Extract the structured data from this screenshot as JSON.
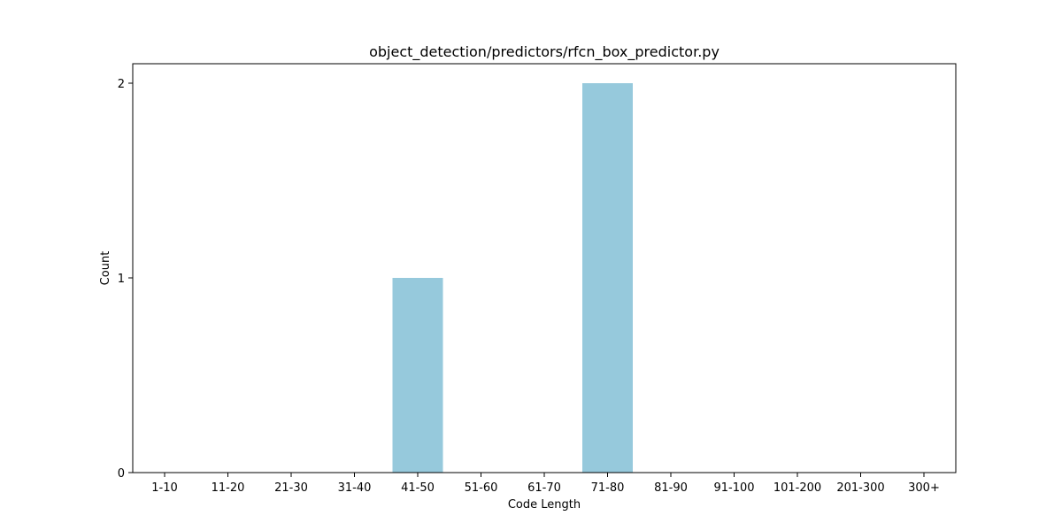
{
  "chart_data": {
    "type": "bar",
    "title": "object_detection/predictors/rfcn_box_predictor.py",
    "xlabel": "Code Length",
    "ylabel": "Count",
    "categories": [
      "1-10",
      "11-20",
      "21-30",
      "31-40",
      "41-50",
      "51-60",
      "61-70",
      "71-80",
      "81-90",
      "91-100",
      "101-200",
      "201-300",
      "300+"
    ],
    "values": [
      0,
      0,
      0,
      0,
      1,
      0,
      0,
      2,
      0,
      0,
      0,
      0,
      0
    ],
    "ylim": [
      0,
      2.1
    ],
    "yticks": [
      "0",
      "1",
      "2"
    ],
    "grid": false,
    "legend": "none",
    "colors": {
      "bar": "#96c9dc",
      "axis": "#000000",
      "background": "#ffffff"
    }
  }
}
